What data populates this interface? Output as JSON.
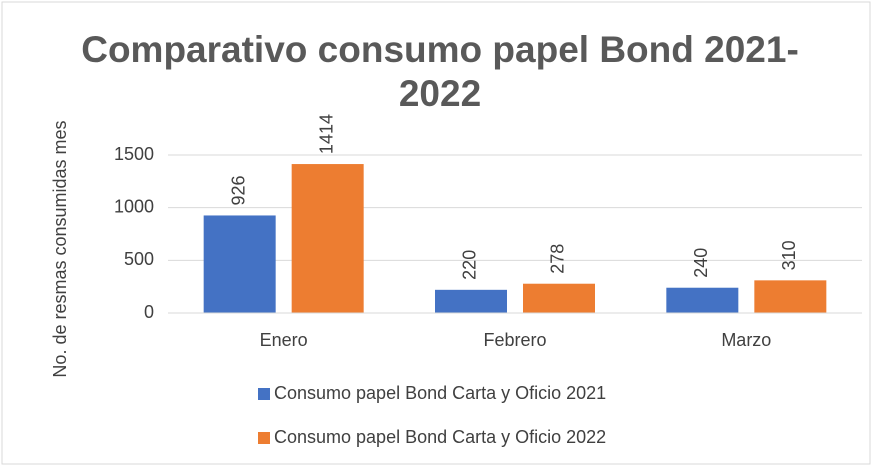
{
  "chart_data": {
    "type": "bar",
    "title": "Comparativo consumo papel Bond 2021-2022",
    "y_label": "No. de resmas consumidas mes",
    "categories": [
      "Enero",
      "Febrero",
      "Marzo"
    ],
    "series": [
      {
        "name": "Consumo papel Bond Carta y Oficio 2021",
        "color": "#4472c4",
        "values": [
          926,
          220,
          240
        ]
      },
      {
        "name": "Consumo papel Bond Carta y Oficio 2022",
        "color": "#ed7d31",
        "values": [
          1414,
          278,
          310
        ]
      }
    ],
    "ylim": [
      0,
      1500
    ],
    "yticks": [
      0,
      500,
      1000,
      1500
    ],
    "grid": true,
    "legend": "bottom"
  }
}
